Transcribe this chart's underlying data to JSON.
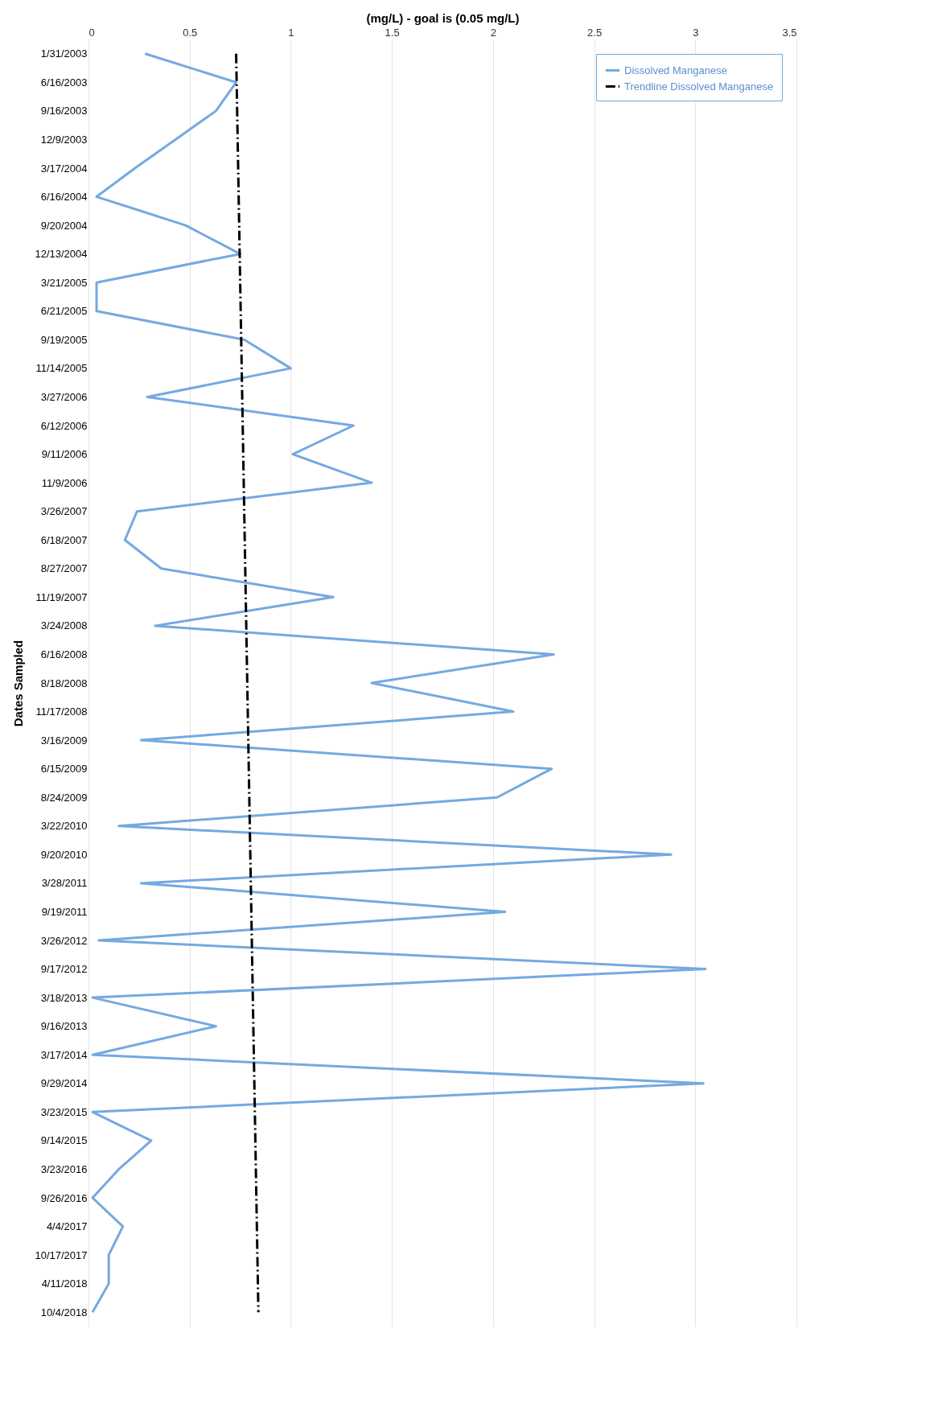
{
  "chart_data": {
    "type": "line",
    "orientation": "horizontal",
    "xlabel": "(mg/L) - goal is (0.05 mg/L)",
    "ylabel": "Dates Sampled",
    "categories": [
      "1/31/2003",
      "6/16/2003",
      "9/16/2003",
      "12/9/2003",
      "3/17/2004",
      "6/16/2004",
      "9/20/2004",
      "12/13/2004",
      "3/21/2005",
      "6/21/2005",
      "9/19/2005",
      "11/14/2005",
      "3/27/2006",
      "6/12/2006",
      "9/11/2006",
      "11/9/2006",
      "3/26/2007",
      "6/18/2007",
      "8/27/2007",
      "11/19/2007",
      "3/24/2008",
      "6/16/2008",
      "8/18/2008",
      "11/17/2008",
      "3/16/2009",
      "6/15/2009",
      "8/24/2009",
      "3/22/2010",
      "9/20/2010",
      "3/28/2011",
      "9/19/2011",
      "3/26/2012",
      "9/17/2012",
      "3/18/2013",
      "9/16/2013",
      "3/17/2014",
      "9/29/2014",
      "3/23/2015",
      "9/14/2015",
      "3/23/2016",
      "9/26/2016",
      "4/4/2017",
      "10/17/2017",
      "4/11/2018",
      "10/4/2018"
    ],
    "series": [
      {
        "name": "Dissolved Manganese",
        "color": "#74a9e0",
        "line_style": "solid",
        "values": [
          0.28,
          0.73,
          0.63,
          0.43,
          0.23,
          0.04,
          0.48,
          0.75,
          0.04,
          0.04,
          0.77,
          1.0,
          0.29,
          1.31,
          1.01,
          1.4,
          0.24,
          0.18,
          0.36,
          1.21,
          0.33,
          2.3,
          1.4,
          2.1,
          0.26,
          2.29,
          2.02,
          0.15,
          2.88,
          0.26,
          2.06,
          0.05,
          3.05,
          0.02,
          0.63,
          0.02,
          3.04,
          0.02,
          0.31,
          0.15,
          0.02,
          0.17,
          0.1,
          0.1,
          0.02
        ]
      },
      {
        "name": "Trendline Dissolved Manganese",
        "color": "#000000",
        "line_style": "dashed",
        "values": [
          0.73,
          null,
          null,
          null,
          null,
          null,
          null,
          null,
          null,
          null,
          null,
          null,
          null,
          null,
          null,
          null,
          null,
          null,
          null,
          null,
          null,
          null,
          null,
          null,
          null,
          null,
          null,
          null,
          null,
          null,
          null,
          null,
          null,
          null,
          null,
          null,
          null,
          null,
          null,
          null,
          null,
          null,
          null,
          null,
          0.84
        ]
      }
    ],
    "xlim": [
      0,
      3.5
    ],
    "xticks": [
      0,
      0.5,
      1,
      1.5,
      2,
      2.5,
      3,
      3.5
    ],
    "grid": "x",
    "legend": "top right",
    "marker": "none"
  }
}
